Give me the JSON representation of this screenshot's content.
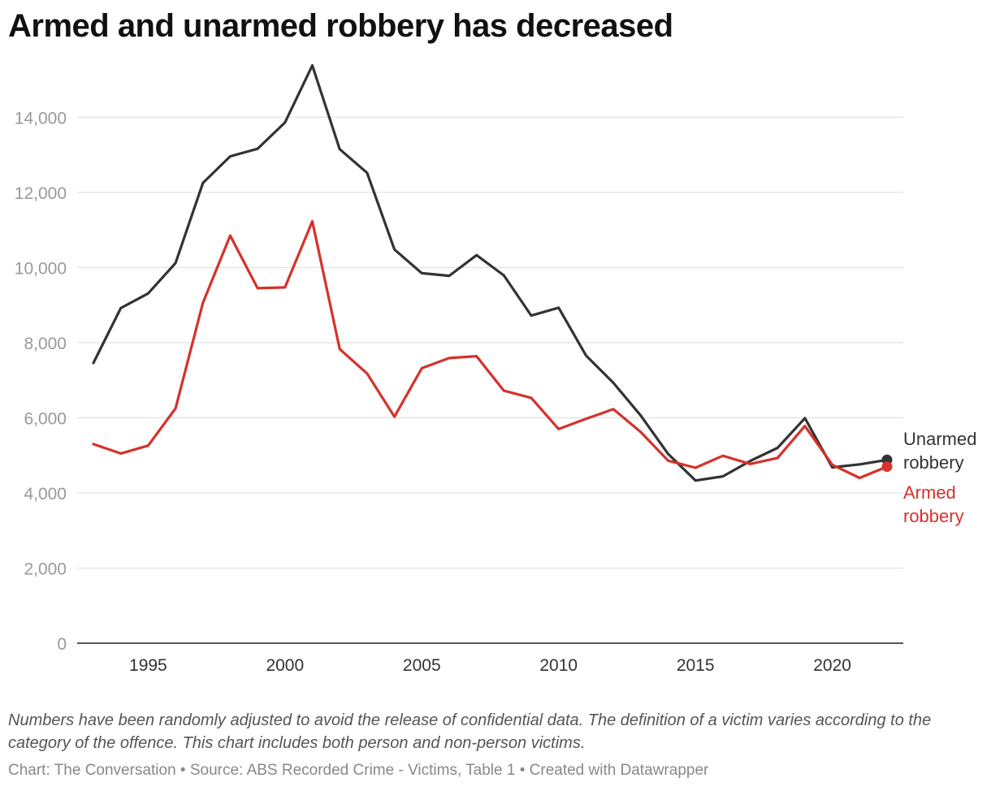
{
  "title": "Armed and unarmed robbery has decreased",
  "notes": "Numbers have been randomly adjusted to avoid the release of confidential data. The definition of a victim varies according to the category of the offence. This chart includes both person and non-person victims.",
  "credit": "Chart: The Conversation • Source: ABS Recorded Crime - Victims, Table 1 • Created with Datawrapper",
  "chart_data": {
    "type": "line",
    "title": "Armed and unarmed robbery has decreased",
    "xlabel": "",
    "ylabel": "",
    "xlim": [
      1993,
      2022
    ],
    "ylim": [
      0,
      15500
    ],
    "grid": true,
    "legend": "direct labels at line ends (right)",
    "y_ticks": [
      {
        "value": 0,
        "label": "0"
      },
      {
        "value": 2000,
        "label": "2,000"
      },
      {
        "value": 4000,
        "label": "4,000"
      },
      {
        "value": 6000,
        "label": "6,000"
      },
      {
        "value": 8000,
        "label": "8,000"
      },
      {
        "value": 10000,
        "label": "10,000"
      },
      {
        "value": 12000,
        "label": "12,000"
      },
      {
        "value": 14000,
        "label": "14,000"
      }
    ],
    "x_ticks": [
      {
        "value": 1995,
        "label": "1995"
      },
      {
        "value": 2000,
        "label": "2000"
      },
      {
        "value": 2005,
        "label": "2005"
      },
      {
        "value": 2010,
        "label": "2010"
      },
      {
        "value": 2015,
        "label": "2015"
      },
      {
        "value": 2020,
        "label": "2020"
      }
    ],
    "x": [
      1993,
      1994,
      1995,
      1996,
      1997,
      1998,
      1999,
      2000,
      2001,
      2002,
      2003,
      2004,
      2005,
      2006,
      2007,
      2008,
      2009,
      2010,
      2011,
      2012,
      2013,
      2014,
      2015,
      2016,
      2017,
      2018,
      2019,
      2020,
      2021,
      2022
    ],
    "series": [
      {
        "name": "Unarmed robbery",
        "label_lines": [
          "Unarmed",
          "robbery"
        ],
        "color": "#333333",
        "values": [
          7460,
          8920,
          9310,
          10120,
          12250,
          12960,
          13160,
          13860,
          15380,
          13150,
          12520,
          10480,
          9850,
          9780,
          10330,
          9790,
          8720,
          8930,
          7660,
          6930,
          6060,
          5040,
          4330,
          4440,
          4850,
          5200,
          5990,
          4680,
          4760,
          4880
        ]
      },
      {
        "name": "Armed robbery",
        "label_lines": [
          "Armed",
          "robbery"
        ],
        "color": "#d6312b",
        "values": [
          5300,
          5050,
          5260,
          6250,
          9060,
          10850,
          9450,
          9470,
          11230,
          7830,
          7180,
          6030,
          7320,
          7590,
          7640,
          6720,
          6530,
          5700,
          5970,
          6230,
          5620,
          4860,
          4670,
          4990,
          4770,
          4930,
          5780,
          4750,
          4400,
          4700
        ]
      }
    ]
  }
}
